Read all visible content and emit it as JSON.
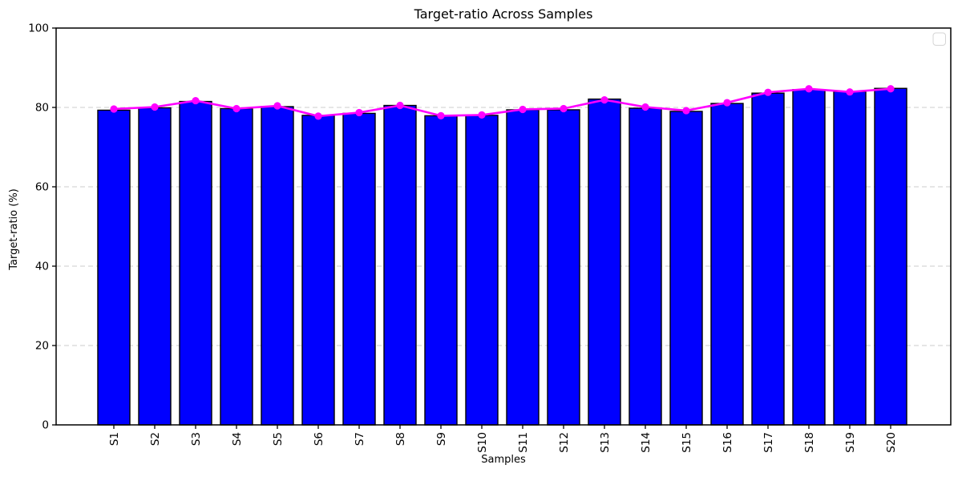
{
  "figure": {
    "title": "Target-ratio Across Samples",
    "xlabel": "Samples",
    "ylabel": "Target-ratio (%)"
  },
  "chart_data": {
    "type": "bar",
    "title": "Target-ratio Across Samples",
    "xlabel": "Samples",
    "ylabel": "Target-ratio (%)",
    "categories": [
      "S1",
      "S2",
      "S3",
      "S4",
      "S5",
      "S6",
      "S7",
      "S8",
      "S9",
      "S10",
      "S11",
      "S12",
      "S13",
      "S14",
      "S15",
      "S16",
      "S17",
      "S18",
      "S19",
      "S20"
    ],
    "series": [
      {
        "name": "target-ratio-bars",
        "type": "bar",
        "color": "#0000ff",
        "edge_color": "#000000",
        "values": [
          79.3,
          79.9,
          81.5,
          79.7,
          80.2,
          78.0,
          78.5,
          80.5,
          77.9,
          78.0,
          79.4,
          79.4,
          82.1,
          79.8,
          79.0,
          81.0,
          83.6,
          84.5,
          84.0,
          84.8
        ]
      },
      {
        "name": "target-ratio-line",
        "type": "line",
        "color": "#ff00ff",
        "marker": "circle",
        "values": [
          79.6,
          80.1,
          81.7,
          79.7,
          80.4,
          77.8,
          78.7,
          80.5,
          77.9,
          78.1,
          79.5,
          79.7,
          81.9,
          80.1,
          79.2,
          81.2,
          83.8,
          84.7,
          83.9,
          84.7
        ]
      }
    ],
    "ylim": [
      0,
      100
    ],
    "yticks": [
      0,
      20,
      40,
      60,
      80,
      100
    ],
    "grid": "horizontal-dashed",
    "grid_color": "#cccccc",
    "background": "#ffffff",
    "legend": {
      "visible": true,
      "entries": [],
      "style": "empty-box",
      "position": "upper-right"
    }
  }
}
